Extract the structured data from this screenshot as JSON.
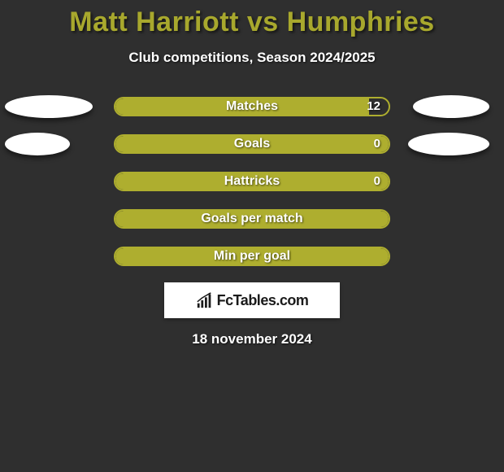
{
  "title": "Matt Harriott vs Humphries",
  "subtitle": "Club competitions, Season 2024/2025",
  "colors": {
    "background": "#2f2f2f",
    "accent": "#a8a82d",
    "bar_fill": "#aeae2f",
    "bar_border": "#aeae2f",
    "ellipse": "#ffffff",
    "text": "#ffffff",
    "logo_bg": "#ffffff",
    "logo_text": "#1a1a1a"
  },
  "typography": {
    "title_fontsize": 34,
    "title_weight": 800,
    "subtitle_fontsize": 17,
    "row_label_fontsize": 16,
    "row_value_fontsize": 15,
    "date_fontsize": 17,
    "logo_fontsize": 18
  },
  "chart": {
    "type": "comparison-bars",
    "bar_track_width": 340,
    "bar_track_height": 24,
    "bar_border_radius": 12,
    "row_gap": 22
  },
  "rows": [
    {
      "label": "Matches",
      "value": "12",
      "fill_pct": 93,
      "left_ellipse_width": 108,
      "right_ellipse_width": 94,
      "show_value": true
    },
    {
      "label": "Goals",
      "value": "0",
      "fill_pct": 100,
      "left_ellipse_width": 80,
      "right_ellipse_width": 100,
      "show_value": true
    },
    {
      "label": "Hattricks",
      "value": "0",
      "fill_pct": 100,
      "left_ellipse_width": 0,
      "right_ellipse_width": 0,
      "show_value": true
    },
    {
      "label": "Goals per match",
      "value": "",
      "fill_pct": 100,
      "left_ellipse_width": 0,
      "right_ellipse_width": 0,
      "show_value": false
    },
    {
      "label": "Min per goal",
      "value": "",
      "fill_pct": 100,
      "left_ellipse_width": 0,
      "right_ellipse_width": 0,
      "show_value": false
    }
  ],
  "logo": {
    "icon_name": "bars-growth-icon",
    "text": "FcTables.com"
  },
  "date": "18 november 2024"
}
